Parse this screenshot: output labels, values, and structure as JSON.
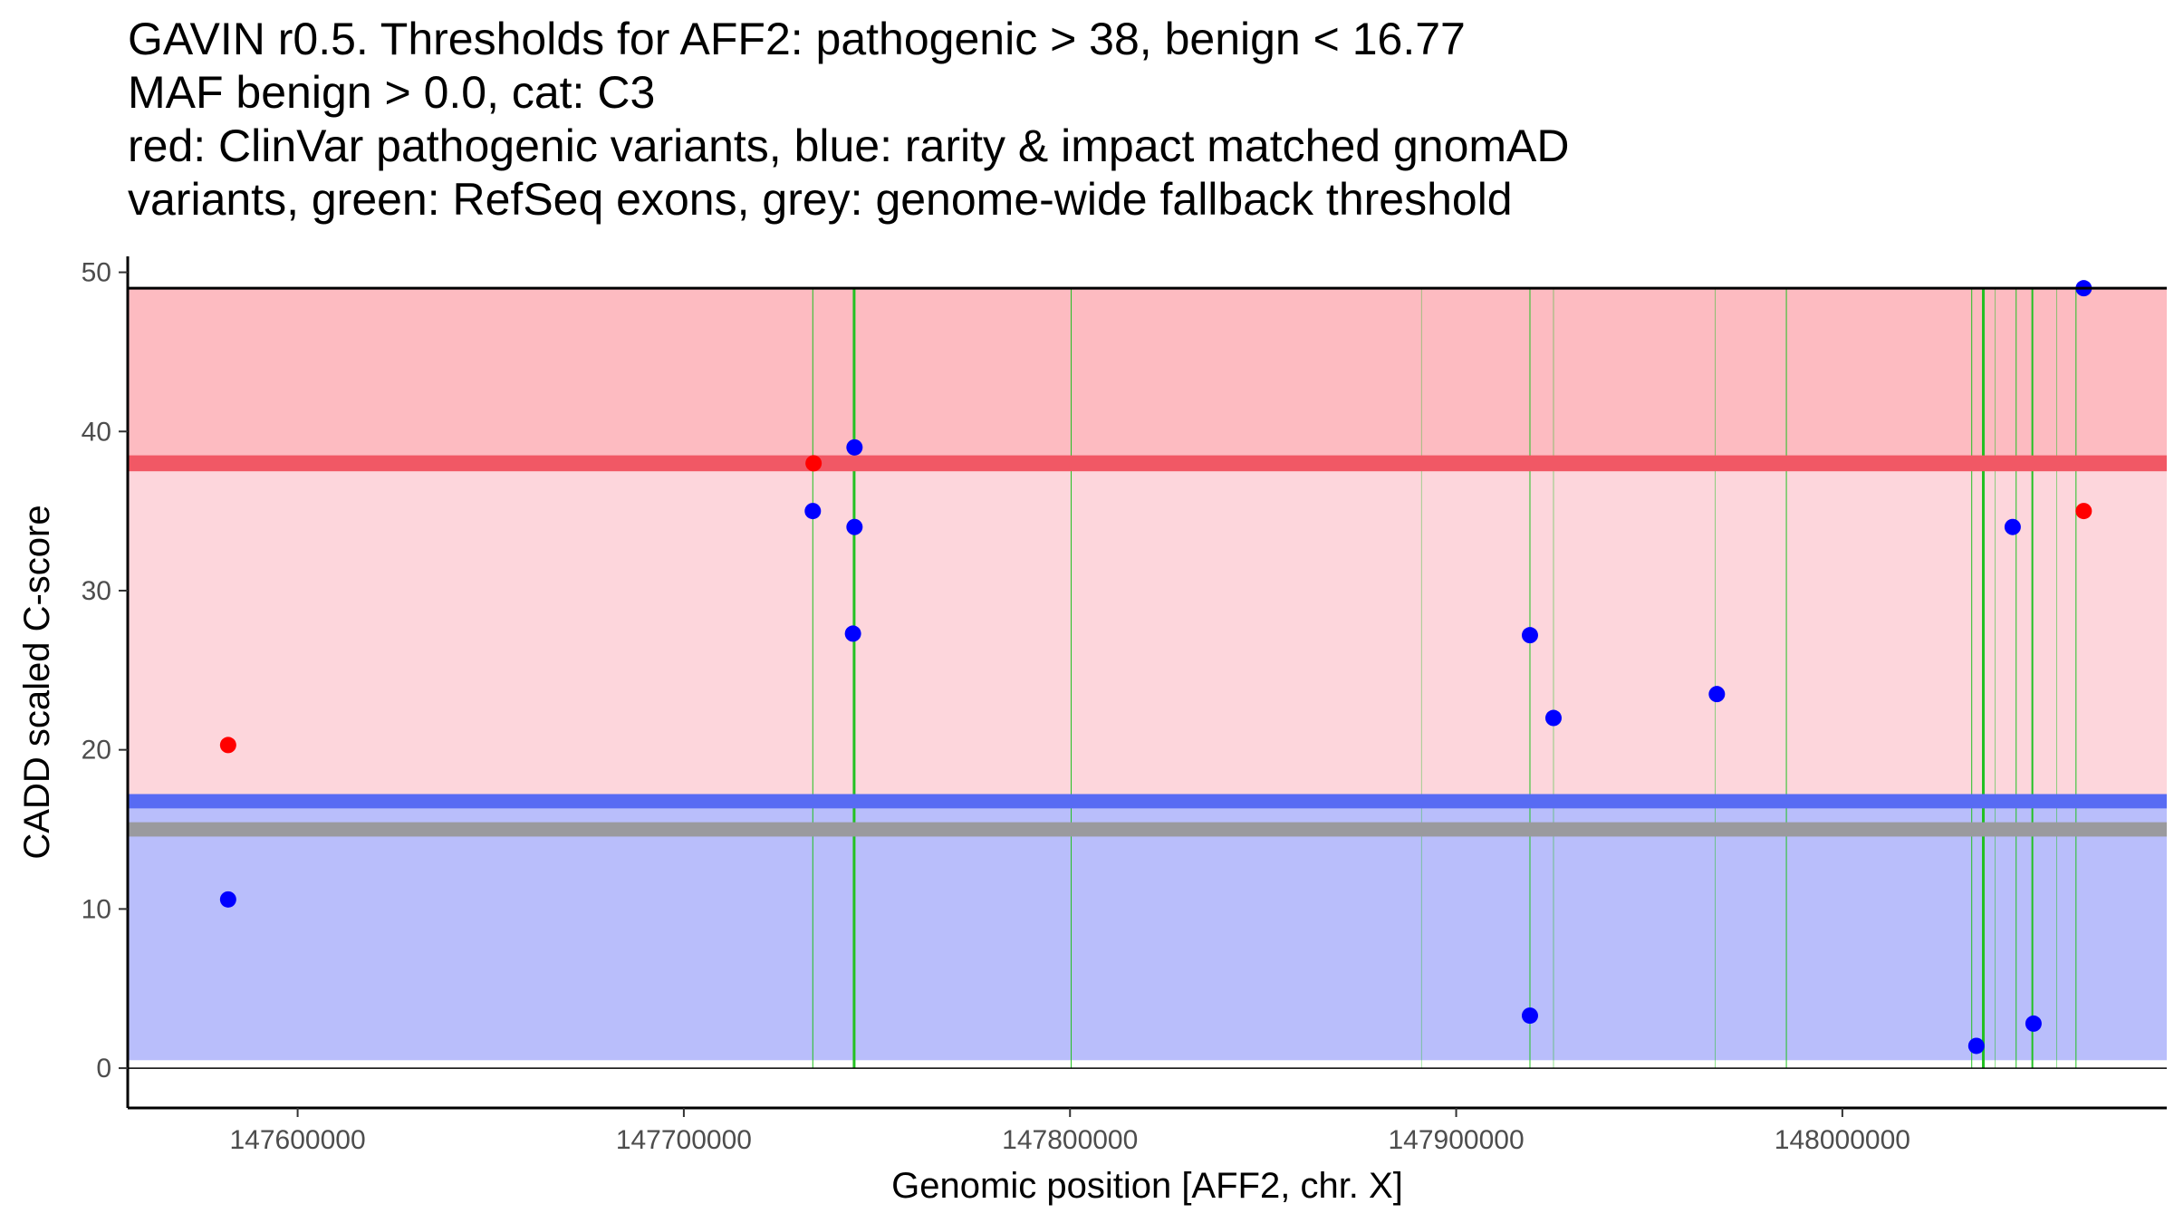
{
  "title_lines": [
    "GAVIN r0.5. Thresholds for AFF2: pathogenic > 38, benign < 16.77",
    "MAF benign > 0.0, cat: C3",
    "red: ClinVar pathogenic variants, blue: rarity & impact matched gnomAD",
    "variants, green: RefSeq exons, grey: genome-wide fallback threshold"
  ],
  "chart_data": {
    "type": "scatter",
    "xlabel": "Genomic position [AFF2, chr. X]",
    "ylabel": "CADD scaled C-score",
    "xlim": [
      147556000,
      148084000
    ],
    "ylim": [
      -2.5,
      51
    ],
    "x_ticks": [
      147600000,
      147700000,
      147800000,
      147900000,
      148000000
    ],
    "x_tick_labels": [
      "147600000",
      "147700000",
      "147800000",
      "147900000",
      "148000000"
    ],
    "y_ticks": [
      0,
      10,
      20,
      30,
      40,
      50
    ],
    "y_tick_labels": [
      "0",
      "10",
      "20",
      "30",
      "40",
      "50"
    ],
    "regions": [
      {
        "name": "pathogenic-region",
        "from": 16.77,
        "to": 49,
        "color": "#fdd6dc"
      },
      {
        "name": "high-pathogenic-region",
        "from": 38,
        "to": 49,
        "color": "#fdbbc1"
      },
      {
        "name": "benign-region",
        "from": 0.5,
        "to": 16.77,
        "color": "#b9befb"
      }
    ],
    "thresholds": [
      {
        "name": "pathogenic-threshold",
        "value": 38,
        "color": "#f15865",
        "band": 1.0
      },
      {
        "name": "benign-threshold",
        "value": 16.77,
        "color": "#586bf3",
        "band": 0.9
      },
      {
        "name": "fallback-threshold",
        "value": 15.0,
        "color": "#9a9a9e",
        "band": 0.9
      }
    ],
    "exon_color": "#22c122",
    "exons": [
      {
        "x": 147733400,
        "w": 1
      },
      {
        "x": 147744100,
        "w": 3
      },
      {
        "x": 147800300,
        "w": 1
      },
      {
        "x": 147891000,
        "w": 0.4
      },
      {
        "x": 147919100,
        "w": 1
      },
      {
        "x": 147925200,
        "w": 0.5
      },
      {
        "x": 147967100,
        "w": 0.5
      },
      {
        "x": 147985500,
        "w": 1
      },
      {
        "x": 148033500,
        "w": 1
      },
      {
        "x": 148036500,
        "w": 3
      },
      {
        "x": 148039500,
        "w": 0.5
      },
      {
        "x": 148045000,
        "w": 1
      },
      {
        "x": 148049200,
        "w": 2
      },
      {
        "x": 148055500,
        "w": 0.5
      },
      {
        "x": 148060500,
        "w": 1
      }
    ],
    "series": [
      {
        "name": "ClinVar pathogenic variants",
        "color": "#ff0000",
        "points": [
          {
            "x": 147582000,
            "y": 20.3
          },
          {
            "x": 147733600,
            "y": 38.0
          },
          {
            "x": 148062500,
            "y": 35.0
          }
        ]
      },
      {
        "name": "gnomAD matched variants",
        "color": "#0000ff",
        "points": [
          {
            "x": 147582000,
            "y": 10.6
          },
          {
            "x": 147733400,
            "y": 35.0
          },
          {
            "x": 147744200,
            "y": 39.0
          },
          {
            "x": 147744200,
            "y": 34.0
          },
          {
            "x": 147743800,
            "y": 27.3
          },
          {
            "x": 147919100,
            "y": 27.2
          },
          {
            "x": 147919100,
            "y": 3.3
          },
          {
            "x": 147925200,
            "y": 22.0
          },
          {
            "x": 147967500,
            "y": 23.5
          },
          {
            "x": 148034700,
            "y": 1.4
          },
          {
            "x": 148044100,
            "y": 34.0
          },
          {
            "x": 148049500,
            "y": 2.8
          },
          {
            "x": 148062500,
            "y": 49.0
          }
        ]
      }
    ]
  }
}
